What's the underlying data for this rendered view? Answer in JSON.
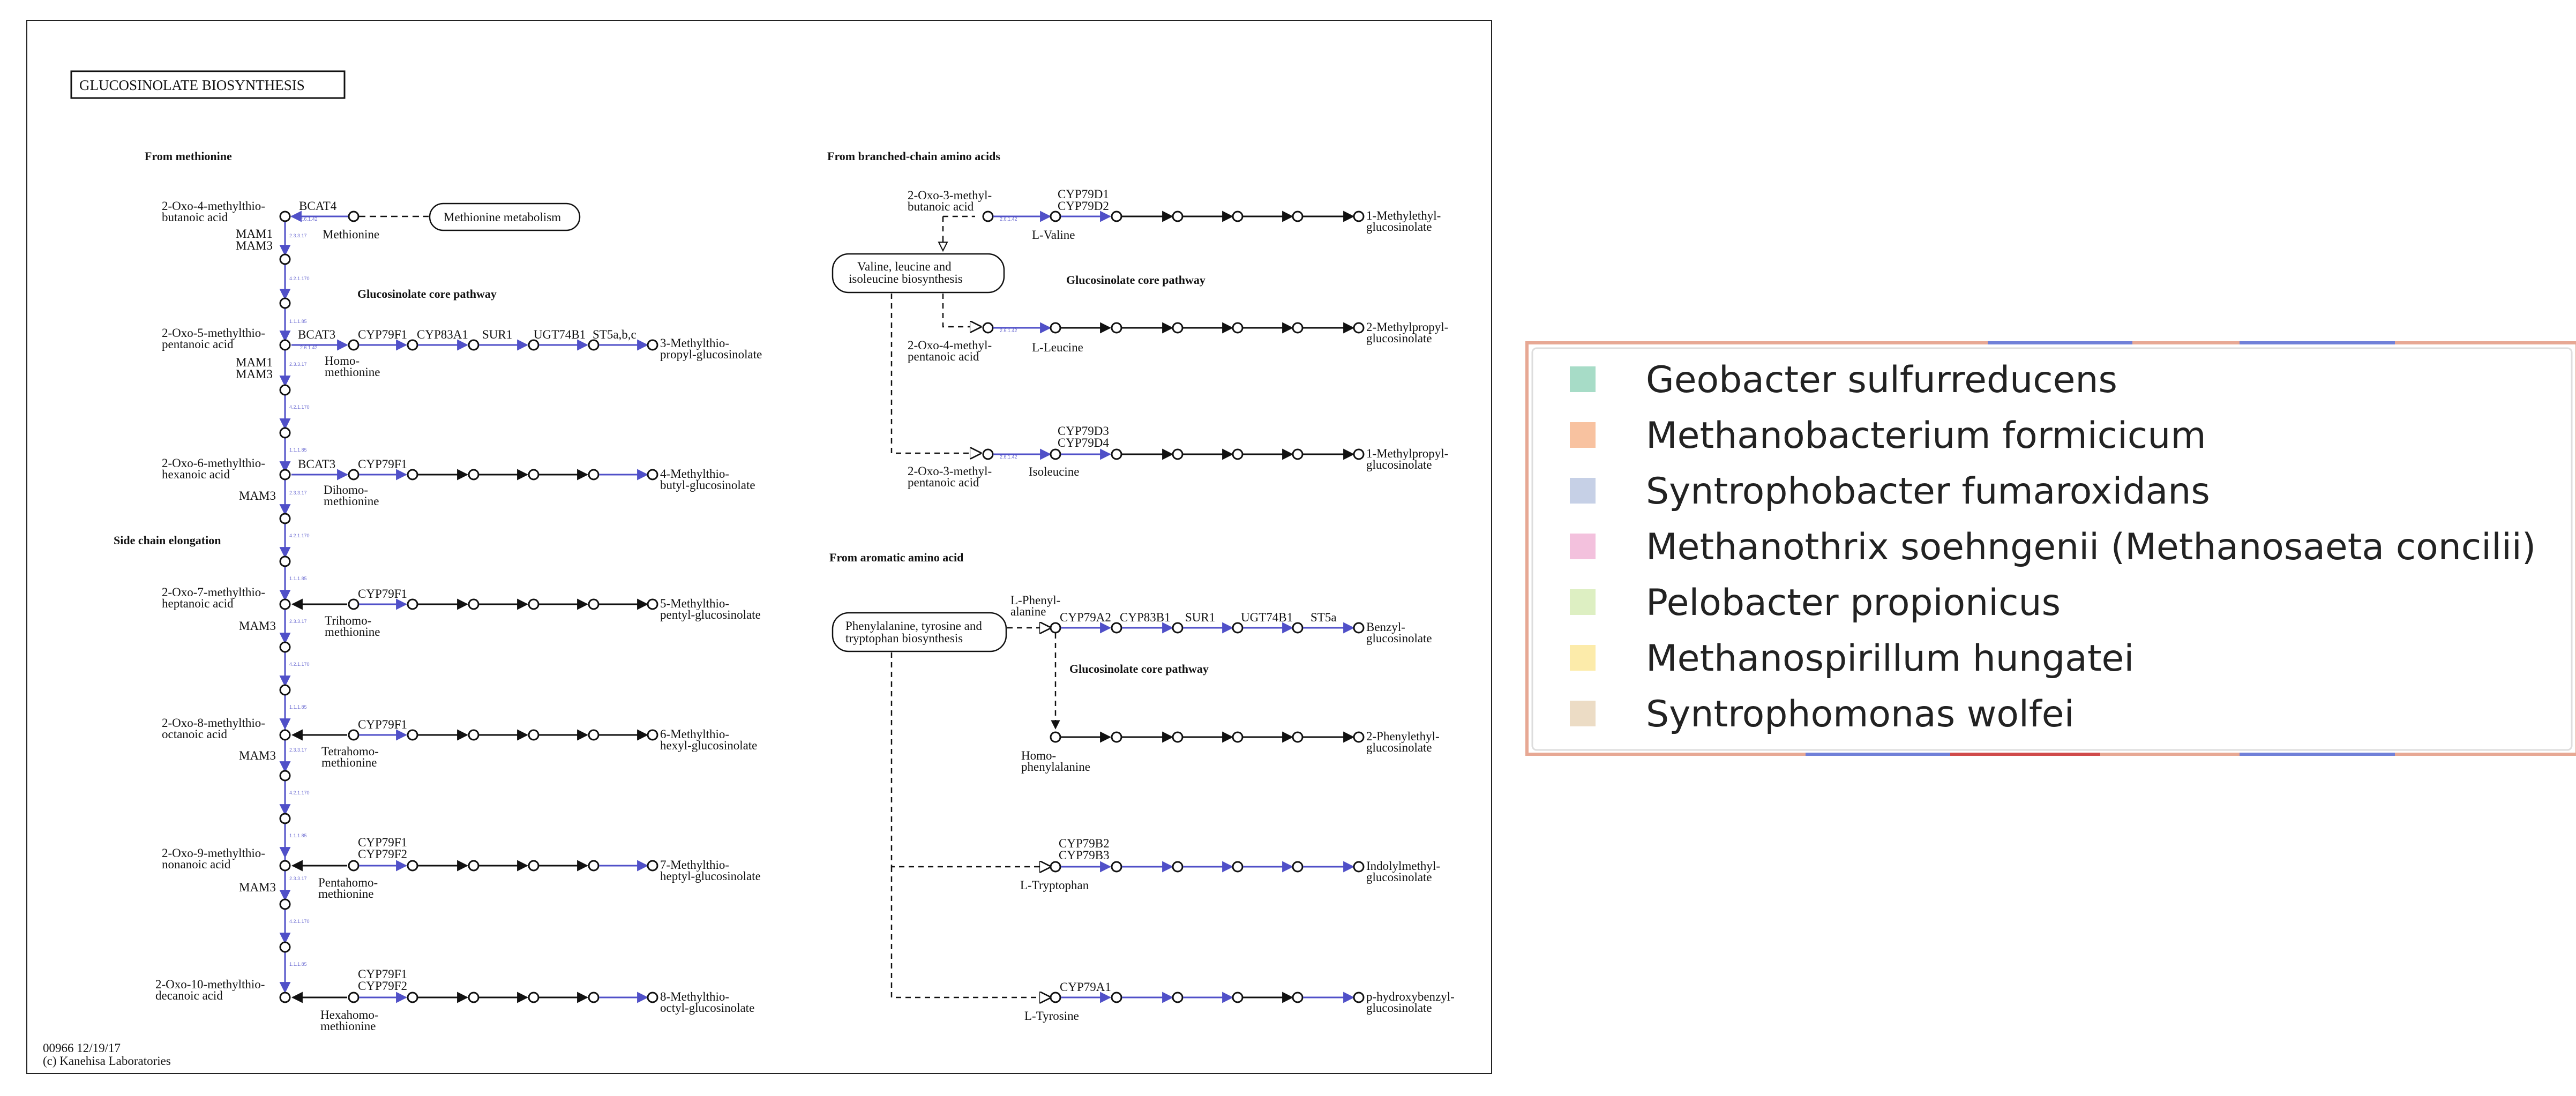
{
  "map": {
    "title": "GLUCOSINOLATE BIOSYNTHESIS",
    "footer_id": "00966 12/19/17",
    "footer_copyright": "(c) Kanehisa Laboratories",
    "sections": {
      "methionine": "From methionine",
      "side_chain": "Side chain elongation",
      "core_left": "Glucosinolate core pathway",
      "branched": "From branched-chain amino acids",
      "core_branched": "Glucosinolate core pathway",
      "aromatic": "From aromatic amino acid",
      "core_aromatic": "Glucosinolate core pathway"
    },
    "boxes": {
      "methionine_metabolism": "Methionine metabolism",
      "valine_box": [
        "Valine, leucine and",
        "isoleucine biosynthesis"
      ],
      "phenylalanine_box": [
        "Phenylalanine, tyrosine and",
        "tryptophan biosynthesis"
      ]
    },
    "compounds": {
      "oxo4": [
        "2-Oxo-4-methylthio-",
        "butanoic acid"
      ],
      "methionine": "Methionine",
      "oxo5": [
        "2-Oxo-5-methylthio-",
        "pentanoic acid"
      ],
      "homomethionine": [
        "Homo-",
        "methionine"
      ],
      "oxo6": [
        "2-Oxo-6-methylthio-",
        "hexanoic acid"
      ],
      "dihomomethionine": [
        "Dihomo-",
        "methionine"
      ],
      "oxo7": [
        "2-Oxo-7-methylthio-",
        "heptanoic acid"
      ],
      "trihomomethionine": [
        "Trihomo-",
        "methionine"
      ],
      "oxo8": [
        "2-Oxo-8-methylthio-",
        "octanoic acid"
      ],
      "tetrahomomethionine": [
        "Tetrahomo-",
        "methionine"
      ],
      "oxo9": [
        "2-Oxo-9-methylthio-",
        "nonanoic acid"
      ],
      "pentahomomethionine": [
        "Pentahomo-",
        "methionine"
      ],
      "oxo10": [
        "2-Oxo-10-methylthio-",
        "decanoic acid"
      ],
      "hexahomomethionine": [
        "Hexahomo-",
        "methionine"
      ],
      "p3": [
        "3-Methylthio-",
        "propyl-glucosinolate"
      ],
      "p4": [
        "4-Methylthio-",
        "butyl-glucosinolate"
      ],
      "p5": [
        "5-Methylthio-",
        "pentyl-glucosinolate"
      ],
      "p6": [
        "6-Methylthio-",
        "hexyl-glucosinolate"
      ],
      "p7": [
        "7-Methylthio-",
        "heptyl-glucosinolate"
      ],
      "p8": [
        "8-Methylthio-",
        "octyl-glucosinolate"
      ],
      "oxo3methylbutanoic": [
        "2-Oxo-3-methyl-",
        "butanoic acid"
      ],
      "valine": "L-Valine",
      "methylethyl": [
        "1-Methylethyl-",
        "glucosinolate"
      ],
      "oxo4methylpentanoic": [
        "2-Oxo-4-methyl-",
        "pentanoic acid"
      ],
      "leucine": "L-Leucine",
      "methylpropyl2": [
        "2-Methylpropyl-",
        "glucosinolate"
      ],
      "oxo3methylpentanoic": [
        "2-Oxo-3-methyl-",
        "pentanoic acid"
      ],
      "isoleucine": "Isoleucine",
      "methylpropyl1": [
        "1-Methylpropyl-",
        "glucosinolate"
      ],
      "phenylalanine": [
        "L-Phenyl-",
        "alanine"
      ],
      "benzyl": [
        "Benzyl-",
        "glucosinolate"
      ],
      "homophenylalanine": [
        "Homo-",
        "phenylalanine"
      ],
      "phenylethyl": [
        "2-Phenylethyl-",
        "glucosinolate"
      ],
      "tryptophan": "L-Tryptophan",
      "indolylmethyl": [
        "Indolylmethyl-",
        "glucosinolate"
      ],
      "tyrosine": "L-Tyrosine",
      "hydroxybenzyl": [
        "p-hydroxybenzyl-",
        "glucosinolate"
      ]
    },
    "genes": {
      "bcat4": "BCAT4",
      "mam1": "MAM1",
      "mam3": "MAM3",
      "bcat3": "BCAT3",
      "cyp79f1": "CYP79F1",
      "cyp79f2": "CYP79F2",
      "cyp83a1": "CYP83A1",
      "sur1": "SUR1",
      "ugt74b1": "UGT74B1",
      "st5abc": "ST5a,b,c",
      "cyp79d1": "CYP79D1",
      "cyp79d2": "CYP79D2",
      "cyp79d3": "CYP79D3",
      "cyp79d4": "CYP79D4",
      "cyp79a2": "CYP79A2",
      "cyp83b1": "CYP83B1",
      "st5a": "ST5a",
      "cyp79b2": "CYP79B2",
      "cyp79b3": "CYP79B3",
      "cyp79a1": "CYP79A1"
    },
    "ec": {
      "transaminase": "2.6.1.42",
      "mam_synthase": "2.3.3.17",
      "isomerase": "4.2.1.170",
      "dehydrogenase": "1.1.1.85",
      "cyp79": "1.14.14.-",
      "cyp83": "1.14.14.42",
      "sur1": "4.4.1.-",
      "ugt": "2.4.1.195",
      "sot": "2.8.2.38"
    }
  },
  "legend": {
    "items": [
      {
        "label": "Geobacter sulfurreducens",
        "color": "#a7dcc7"
      },
      {
        "label": "Methanobacterium formicicum",
        "color": "#f8c2a0"
      },
      {
        "label": "Syntrophobacter fumaroxidans",
        "color": "#c6d0e6"
      },
      {
        "label": "Methanothrix soehngenii (Methanosaeta concilii)",
        "color": "#f3c1dd"
      },
      {
        "label": "Pelobacter propionicus",
        "color": "#ddefc2"
      },
      {
        "label": "Methanospirillum hungatei",
        "color": "#fcebaa"
      },
      {
        "label": "Syntrophomonas wolfei",
        "color": "#ecdcc5"
      }
    ]
  },
  "colors": {
    "enzyme_line": "#5050c8",
    "ec_text": "#6e6ed2",
    "legend_border": "#e7a894",
    "legend_accent_blue": "#7080d8",
    "legend_accent_red": "#d04a4a"
  }
}
